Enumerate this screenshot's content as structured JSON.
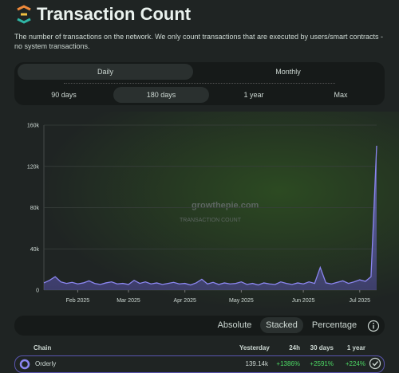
{
  "header": {
    "title": "Transaction Count",
    "description": "The number of transactions on the network. We only count transactions that are executed by users/smart contracts - no system transactions."
  },
  "tabs": [
    "Daily",
    "Monthly"
  ],
  "ranges": [
    "90 days",
    "180 days",
    "1 year",
    "Max"
  ],
  "watermark": {
    "brand": "growthepie.com",
    "subtitle": "TRANSACTION COUNT"
  },
  "chart_data": {
    "type": "area",
    "categories": [
      null,
      null,
      null,
      null,
      null,
      null,
      "Feb 2025",
      null,
      null,
      null,
      null,
      null,
      null,
      null,
      null,
      "Mar 2025",
      null,
      null,
      null,
      null,
      null,
      null,
      null,
      null,
      null,
      "Apr 2025",
      null,
      null,
      null,
      null,
      null,
      null,
      null,
      null,
      null,
      "May 2025",
      null,
      null,
      null,
      null,
      null,
      null,
      null,
      null,
      null,
      null,
      "Jun 2025",
      null,
      null,
      null,
      null,
      null,
      null,
      null,
      null,
      null,
      "Jul 2025",
      null,
      null,
      null
    ],
    "series": [
      {
        "name": "Orderly",
        "color": "#8b86f0",
        "values": [
          7000,
          9500,
          13000,
          8000,
          6500,
          7500,
          6000,
          7000,
          9000,
          6500,
          5500,
          7000,
          8000,
          6000,
          6500,
          5500,
          9500,
          6500,
          8000,
          6000,
          7000,
          5500,
          6500,
          7500,
          6000,
          6500,
          5000,
          7000,
          10500,
          6000,
          7500,
          5500,
          7000,
          6000,
          6500,
          8000,
          5500,
          6500,
          5000,
          7000,
          6000,
          5500,
          8000,
          6500,
          5500,
          7000,
          6000,
          8000,
          6500,
          22000,
          7000,
          6000,
          7500,
          9000,
          6500,
          8000,
          10000,
          8500,
          13000,
          140000
        ]
      }
    ],
    "ylim": [
      0,
      160000
    ],
    "yticks": [
      0,
      {
        "value": 40000,
        "label": "40k"
      },
      {
        "value": 80000,
        "label": "80k"
      },
      {
        "value": 120000,
        "label": "120k"
      },
      {
        "value": 160000,
        "label": "160k"
      }
    ],
    "grid": true
  },
  "toggles": [
    "Absolute",
    "Stacked",
    "Percentage"
  ],
  "table": {
    "headers": [
      "Chain",
      "Yesterday",
      "24h",
      "30 days",
      "1 year"
    ],
    "rows": [
      [
        "Orderly",
        "139.14k",
        "+1386%",
        "+2591%",
        "+224%"
      ]
    ]
  }
}
